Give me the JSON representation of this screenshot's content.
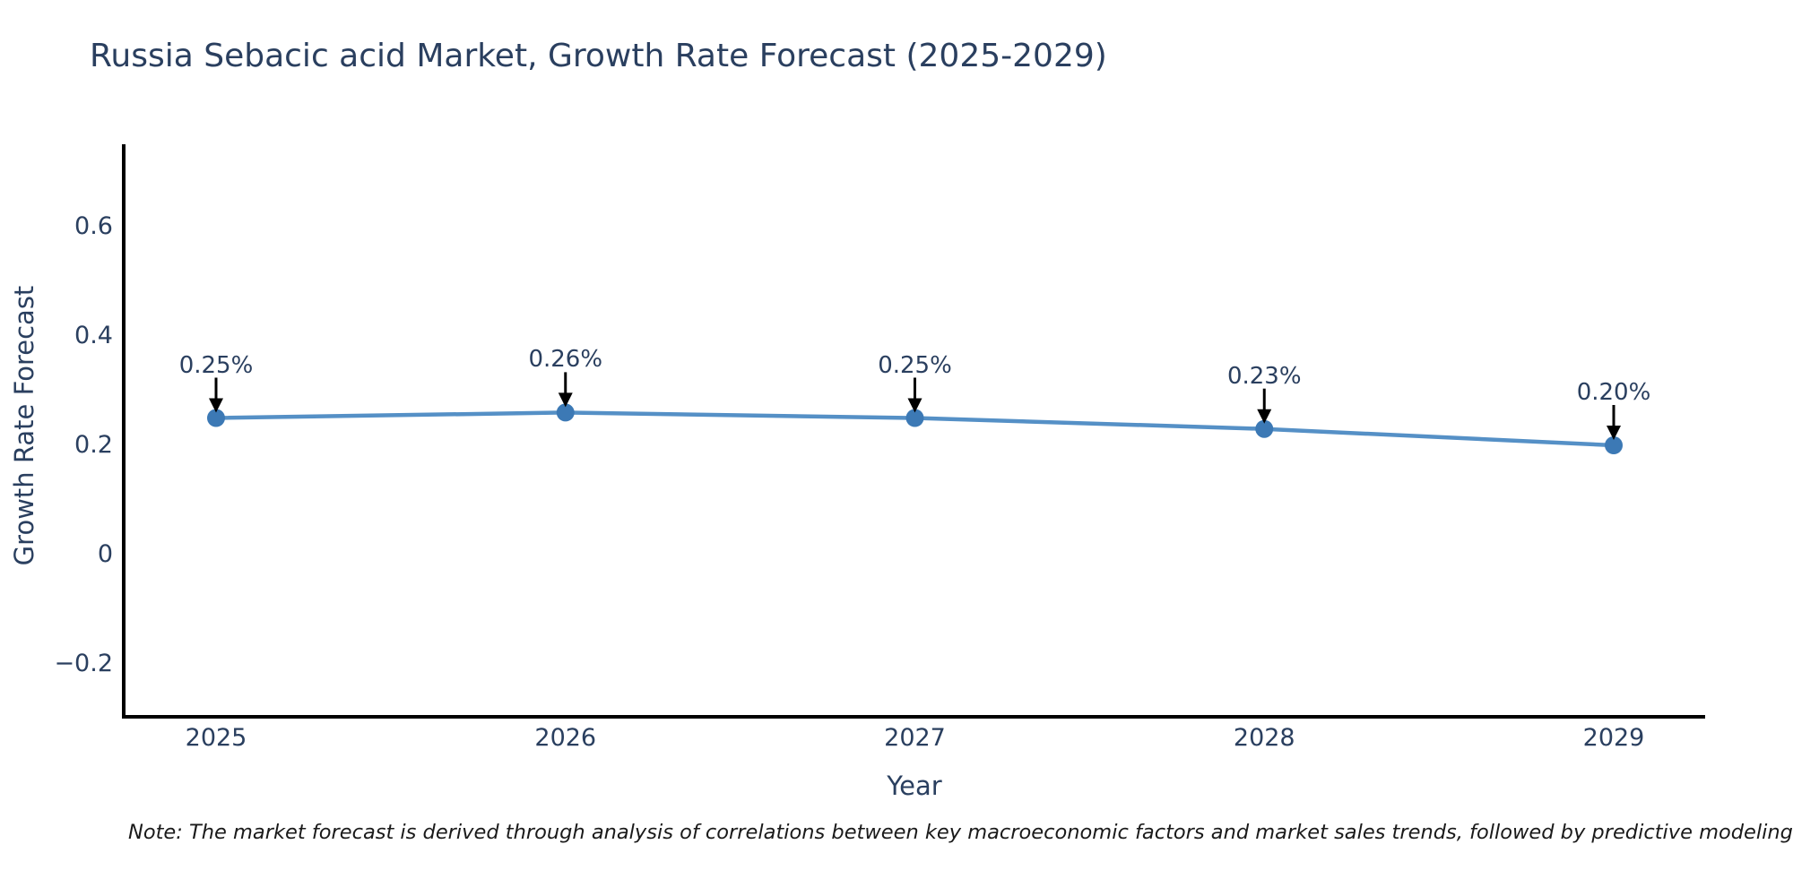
{
  "title": "Russia Sebacic acid Market, Growth Rate Forecast (2025-2029)",
  "axes": {
    "x_label": "Year",
    "y_label": "Growth Rate Forecast",
    "x_tick_labels": [
      "2025",
      "2026",
      "2027",
      "2028",
      "2029"
    ],
    "y_tick_labels": [
      "0.6",
      "0.4",
      "0.2",
      "0",
      "−0.2"
    ]
  },
  "note": "Note: The market forecast is derived through analysis of correlations between key macroeconomic factors and market sales trends, followed by predictive modeling to project future sa",
  "chart_data": {
    "type": "line",
    "title": "Russia Sebacic acid Market, Growth Rate Forecast (2025-2029)",
    "xlabel": "Year",
    "ylabel": "Growth Rate Forecast",
    "x": [
      2025,
      2026,
      2027,
      2028,
      2029
    ],
    "series": [
      {
        "name": "Growth Rate Forecast",
        "values": [
          0.25,
          0.26,
          0.25,
          0.23,
          0.2
        ]
      }
    ],
    "point_labels": [
      "0.25%",
      "0.26%",
      "0.25%",
      "0.23%",
      "0.20%"
    ],
    "yticks": [
      0.6,
      0.4,
      0.2,
      0,
      -0.2
    ],
    "ylim": [
      -0.3,
      0.75
    ],
    "xlim": [
      2023.95,
      2030.05
    ],
    "grid": false,
    "legend": false,
    "colors": {
      "line": "#5590c6",
      "marker": "#3c79b5",
      "axis": "#000000",
      "arrow": "#000000",
      "text": "#2a3f5f"
    }
  }
}
